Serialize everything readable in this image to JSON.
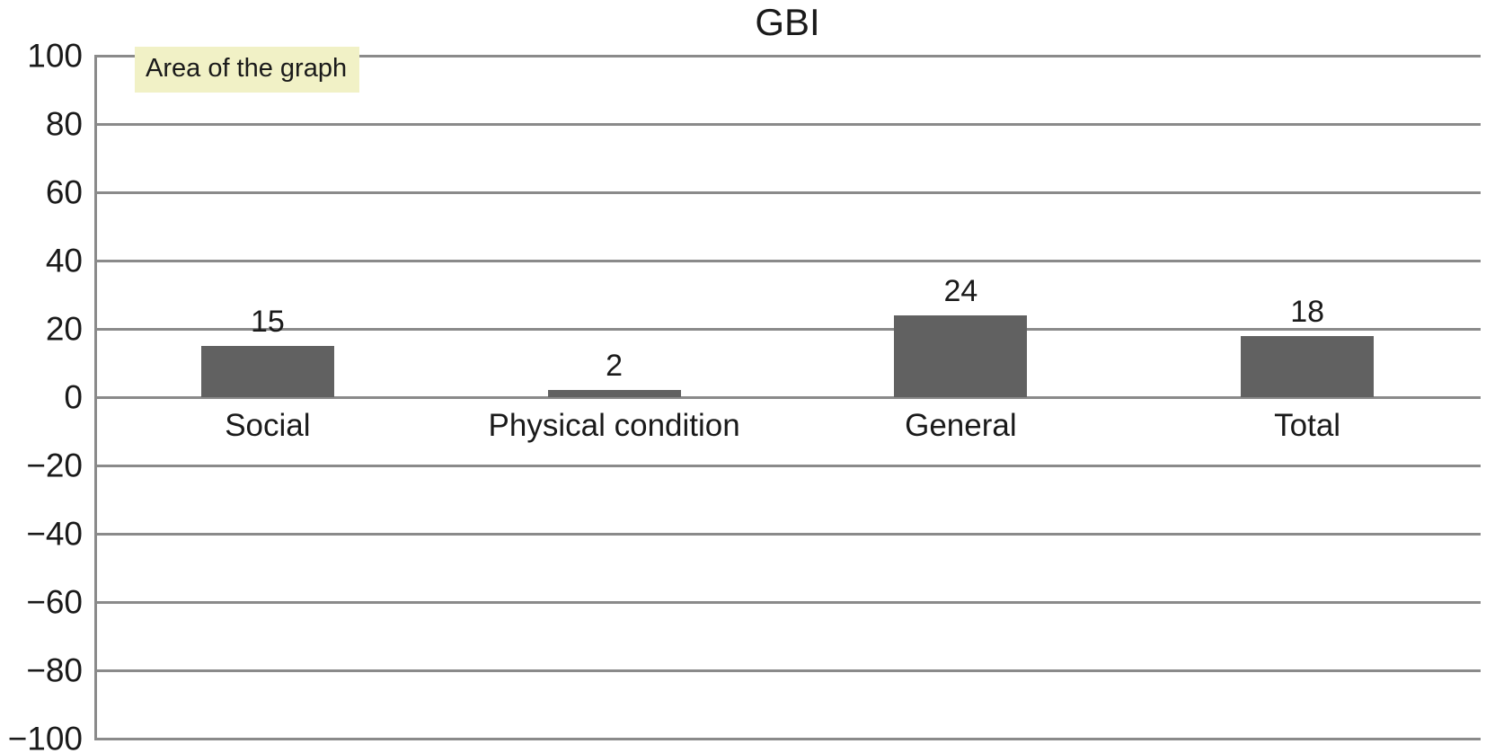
{
  "chart_data": {
    "type": "bar",
    "title": "GBI",
    "categories": [
      "Social",
      "Physical condition",
      "General",
      "Total"
    ],
    "values": [
      15,
      2,
      24,
      18
    ],
    "xlabel": "",
    "ylabel": "",
    "ylim": [
      -100,
      100
    ],
    "ytick_interval": 20,
    "yticks": [
      {
        "value": 100,
        "label": "100"
      },
      {
        "value": 80,
        "label": "80"
      },
      {
        "value": 60,
        "label": "60"
      },
      {
        "value": 40,
        "label": "40"
      },
      {
        "value": 20,
        "label": "20"
      },
      {
        "value": 0,
        "label": "0"
      },
      {
        "value": -20,
        "label": "−20"
      },
      {
        "value": -40,
        "label": "−40"
      },
      {
        "value": -60,
        "label": "−60"
      },
      {
        "value": -80,
        "label": "−80"
      },
      {
        "value": -100,
        "label": "−100"
      }
    ],
    "grid": true,
    "legend": false,
    "annotation": "Area of the graph",
    "annotation_bg": "#f1f1c6",
    "bar_color": "#616161",
    "gridline_color": "#8a8a8a"
  }
}
